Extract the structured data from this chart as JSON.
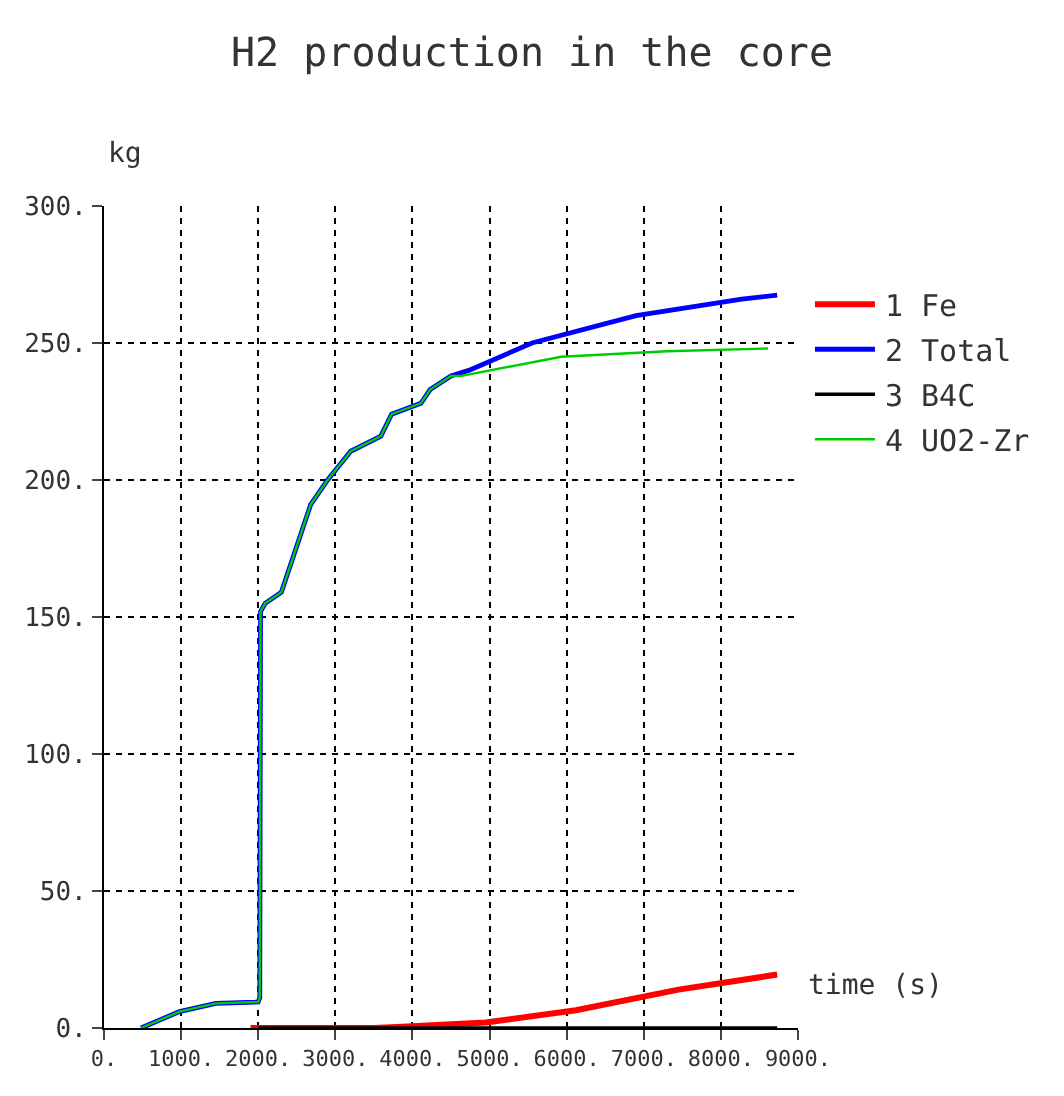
{
  "chart_data": {
    "type": "line",
    "title": "H2 production in the core",
    "xlabel": "time (s)",
    "ylabel": "kg",
    "xlim": [
      0,
      9000
    ],
    "ylim": [
      0,
      300
    ],
    "xticks": [
      {
        "value": 0,
        "label": "0."
      },
      {
        "value": 1000,
        "label": "1000."
      },
      {
        "value": 2000,
        "label": "2000."
      },
      {
        "value": 3000,
        "label": "3000."
      },
      {
        "value": 4000,
        "label": "4000."
      },
      {
        "value": 5000,
        "label": "5000."
      },
      {
        "value": 6000,
        "label": "6000."
      },
      {
        "value": 7000,
        "label": "7000."
      },
      {
        "value": 8000,
        "label": "8000."
      },
      {
        "value": 9000,
        "label": "9000."
      }
    ],
    "yticks": [
      {
        "value": 0,
        "label": "0."
      },
      {
        "value": 50,
        "label": "50."
      },
      {
        "value": 100,
        "label": "100."
      },
      {
        "value": 150,
        "label": "150."
      },
      {
        "value": 200,
        "label": "200."
      },
      {
        "value": 250,
        "label": "250."
      },
      {
        "value": 300,
        "label": "300."
      }
    ],
    "grid": true,
    "legend": "right",
    "marker": "none",
    "line_style": "solid",
    "series": [
      {
        "name": "1 Fe",
        "color": "#ff0000",
        "x": [
          1900,
          3500,
          3870,
          4950,
          6120,
          7450,
          8730
        ],
        "values": [
          0,
          0,
          0.5,
          2,
          6.5,
          14,
          19.5
        ]
      },
      {
        "name": "2 Total",
        "color": "#0000ff",
        "x": [
          480,
          980,
          1450,
          2000,
          2020,
          2030,
          2090,
          2300,
          2680,
          2900,
          3200,
          3590,
          3730,
          4110,
          4230,
          4500,
          4730,
          5550,
          6900,
          8270,
          8730
        ],
        "values": [
          0,
          6,
          9,
          9.5,
          11,
          152,
          155,
          159,
          191,
          200,
          210.5,
          216,
          224,
          228,
          233,
          238,
          240,
          250,
          260,
          266,
          267.5
        ]
      },
      {
        "name": "3 B4C",
        "color": "#000000",
        "x": [
          2000,
          8730
        ],
        "values": [
          0,
          0
        ]
      },
      {
        "name": "4 UO2-Zr",
        "color": "#00cc00",
        "x": [
          480,
          980,
          1450,
          2000,
          2020,
          2030,
          2090,
          2300,
          2680,
          2900,
          3200,
          3590,
          3730,
          4110,
          4230,
          4500,
          4640,
          5930,
          7300,
          8610
        ],
        "values": [
          0,
          6,
          9,
          9.5,
          11,
          152,
          155,
          159,
          191,
          200,
          210.5,
          216,
          224,
          228,
          233,
          238,
          238,
          245,
          247,
          248
        ]
      }
    ]
  }
}
